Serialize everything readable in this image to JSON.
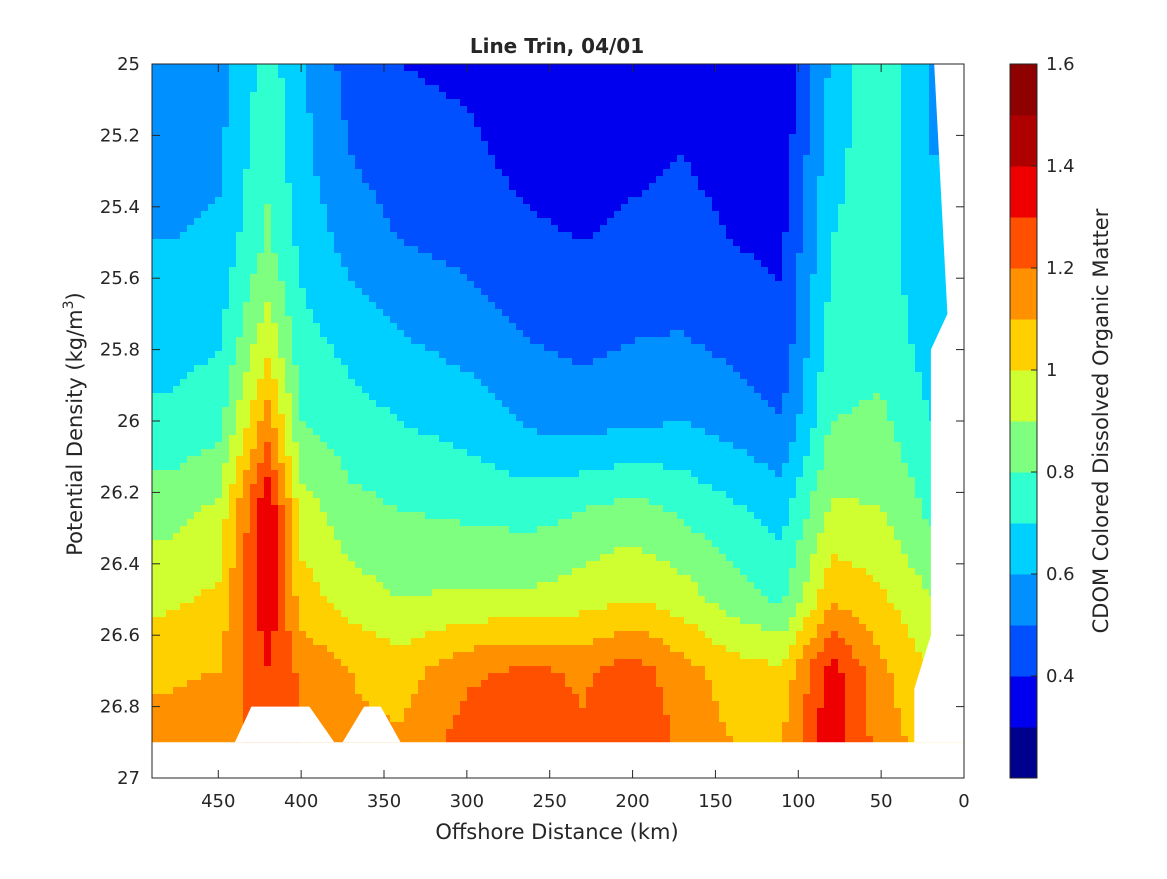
{
  "chart_data": {
    "type": "heatmap",
    "subtype": "filled-contour",
    "title": "Line Trin, 04/01",
    "xlabel": "Offshore Distance (km)",
    "ylabel": "Potential Density (kg/m",
    "ylabel_superscript": "3",
    "ylabel_suffix": ")",
    "xlim": [
      490,
      0
    ],
    "ylim": [
      25,
      27
    ],
    "x_reversed": true,
    "y_reversed": true,
    "x_ticks": [
      450,
      400,
      350,
      300,
      250,
      200,
      150,
      100,
      50,
      0
    ],
    "y_ticks": [
      "25",
      "25.2",
      "25.4",
      "25.6",
      "25.8",
      "26",
      "26.2",
      "26.4",
      "26.6",
      "26.8",
      "27"
    ],
    "colorbar": {
      "label": "CDOM Colored Dissolved Organic Matter",
      "range": [
        0.2,
        1.6
      ],
      "tick_labels": [
        "0.4",
        "0.6",
        "0.8",
        "1",
        "1.2",
        "1.4",
        "1.6"
      ],
      "tick_values": [
        0.4,
        0.6,
        0.8,
        1.0,
        1.2,
        1.4,
        1.6
      ],
      "levels": [
        0.2,
        0.3,
        0.4,
        0.5,
        0.6,
        0.7,
        0.8,
        0.9,
        1.0,
        1.1,
        1.2,
        1.3,
        1.4,
        1.5,
        1.6
      ],
      "colors": [
        "#00008f",
        "#0000ef",
        "#0050ff",
        "#0090ff",
        "#00d0ff",
        "#30ffcf",
        "#7fff7f",
        "#cfff30",
        "#ffd000",
        "#ff9000",
        "#ff5000",
        "#ef0000",
        "#af0000",
        "#8f0000"
      ]
    },
    "field": {
      "x": [
        480,
        450,
        420,
        400,
        370,
        340,
        300,
        260,
        230,
        200,
        170,
        140,
        110,
        80,
        50,
        20
      ],
      "y": [
        25.0,
        25.25,
        25.5,
        25.75,
        26.0,
        26.25,
        26.5,
        26.7,
        26.9
      ],
      "values": [
        [
          0.52,
          0.55,
          0.75,
          0.62,
          0.45,
          0.4,
          0.38,
          0.32,
          0.3,
          0.34,
          0.38,
          0.33,
          0.3,
          0.62,
          0.8,
          0.58
        ],
        [
          0.55,
          0.58,
          0.78,
          0.63,
          0.5,
          0.44,
          0.42,
          0.36,
          0.34,
          0.37,
          0.4,
          0.36,
          0.34,
          0.66,
          0.78,
          0.6
        ],
        [
          0.6,
          0.62,
          0.82,
          0.67,
          0.56,
          0.5,
          0.47,
          0.42,
          0.4,
          0.43,
          0.44,
          0.4,
          0.38,
          0.7,
          0.75,
          0.62
        ],
        [
          0.66,
          0.68,
          0.95,
          0.73,
          0.66,
          0.6,
          0.55,
          0.49,
          0.46,
          0.49,
          0.5,
          0.46,
          0.42,
          0.74,
          0.76,
          0.65
        ],
        [
          0.72,
          0.76,
          1.15,
          0.8,
          0.74,
          0.7,
          0.66,
          0.58,
          0.56,
          0.58,
          0.6,
          0.56,
          0.5,
          0.8,
          0.82,
          0.7
        ],
        [
          0.86,
          0.92,
          1.4,
          0.95,
          0.83,
          0.8,
          0.78,
          0.76,
          0.8,
          0.84,
          0.78,
          0.72,
          0.66,
          0.92,
          0.9,
          0.78
        ],
        [
          0.98,
          1.02,
          1.38,
          1.05,
          0.95,
          0.9,
          0.92,
          0.92,
          0.96,
          1.0,
          0.95,
          0.85,
          0.78,
          1.08,
          1.02,
          0.9
        ],
        [
          1.08,
          1.1,
          1.3,
          1.18,
          1.1,
          1.05,
          1.18,
          1.22,
          1.18,
          1.25,
          1.14,
          1.05,
          1.02,
          1.35,
          1.12,
          1.0
        ],
        [
          1.15,
          1.18,
          1.22,
          1.2,
          1.12,
          1.12,
          1.25,
          1.28,
          1.22,
          1.3,
          1.18,
          1.1,
          1.1,
          1.38,
          1.15,
          1.05
        ]
      ]
    },
    "legend": "none",
    "grid": false
  }
}
